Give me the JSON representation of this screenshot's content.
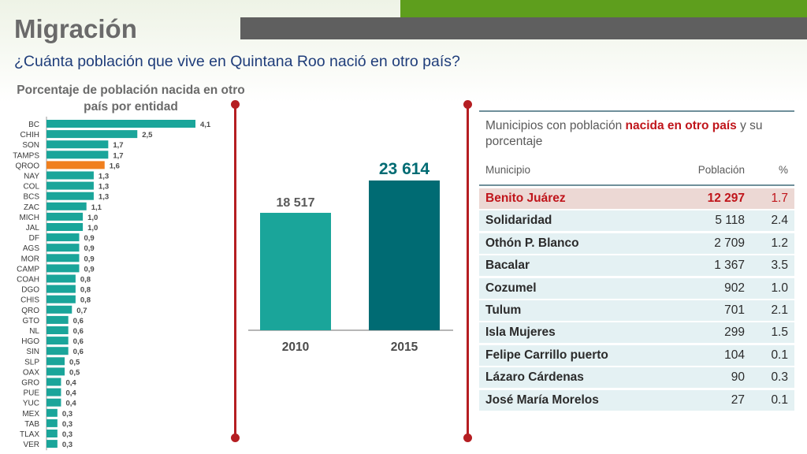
{
  "header": {
    "title": "Migración",
    "subtitle": "¿Cuánta población que vive en Quintana Roo nació en otro país?"
  },
  "colors": {
    "teal": "#1aa59a",
    "orange": "#f07f1e",
    "dark_teal": "#006b73",
    "red": "#b51e22"
  },
  "chart_data": [
    {
      "type": "bar",
      "orientation": "horizontal",
      "title": "Porcentaje de población nacida en otro país por entidad",
      "categories": [
        "BC",
        "CHIH",
        "SON",
        "TAMPS",
        "QROO",
        "NAY",
        "COL",
        "BCS",
        "ZAC",
        "MICH",
        "JAL",
        "DF",
        "AGS",
        "MOR",
        "CAMP",
        "COAH",
        "DGO",
        "CHIS",
        "QRO",
        "GTO",
        "NL",
        "HGO",
        "SIN",
        "SLP",
        "OAX",
        "GRO",
        "PUE",
        "YUC",
        "MEX",
        "TAB",
        "TLAX",
        "VER"
      ],
      "values": [
        4.1,
        2.5,
        1.7,
        1.7,
        1.6,
        1.3,
        1.3,
        1.3,
        1.1,
        1.0,
        1.0,
        0.9,
        0.9,
        0.9,
        0.9,
        0.8,
        0.8,
        0.8,
        0.7,
        0.6,
        0.6,
        0.6,
        0.6,
        0.5,
        0.5,
        0.4,
        0.4,
        0.4,
        0.3,
        0.3,
        0.3,
        0.3
      ],
      "labels": [
        "4,1",
        "2,5",
        "1,7",
        "1,7",
        "1,6",
        "1,3",
        "1,3",
        "1,3",
        "1,1",
        "1,0",
        "1,0",
        "0,9",
        "0,9",
        "0,9",
        "0,9",
        "0,8",
        "0,8",
        "0,8",
        "0,7",
        "0,6",
        "0,6",
        "0,6",
        "0,6",
        "0,5",
        "0,5",
        "0,4",
        "0,4",
        "0,4",
        "0,3",
        "0,3",
        "0,3",
        "0,3"
      ],
      "highlight": "QROO"
    },
    {
      "type": "bar",
      "categories": [
        "2010",
        "2015"
      ],
      "values": [
        18517,
        23614
      ],
      "labels": [
        "18 517",
        "23 614"
      ]
    }
  ],
  "table": {
    "title_pre": "Municipios con población ",
    "title_hl": "nacida en otro país",
    "title_post": " y su porcentaje",
    "headers": {
      "municipio": "Municipio",
      "poblacion": "Población",
      "pct": "%"
    },
    "rows": [
      {
        "municipio": "Benito Juárez",
        "poblacion": "12 297",
        "pct": "1.7"
      },
      {
        "municipio": "Solidaridad",
        "poblacion": "5 118",
        "pct": "2.4"
      },
      {
        "municipio": "Othón P. Blanco",
        "poblacion": "2 709",
        "pct": "1.2"
      },
      {
        "municipio": "Bacalar",
        "poblacion": "1 367",
        "pct": "3.5"
      },
      {
        "municipio": "Cozumel",
        "poblacion": "902",
        "pct": "1.0"
      },
      {
        "municipio": "Tulum",
        "poblacion": "701",
        "pct": "2.1"
      },
      {
        "municipio": "Isla Mujeres",
        "poblacion": "299",
        "pct": "1.5"
      },
      {
        "municipio": "Felipe Carrillo puerto",
        "poblacion": "104",
        "pct": "0.1"
      },
      {
        "municipio": "Lázaro Cárdenas",
        "poblacion": "90",
        "pct": "0.3"
      },
      {
        "municipio": "José María Morelos",
        "poblacion": "27",
        "pct": "0.1"
      }
    ]
  }
}
